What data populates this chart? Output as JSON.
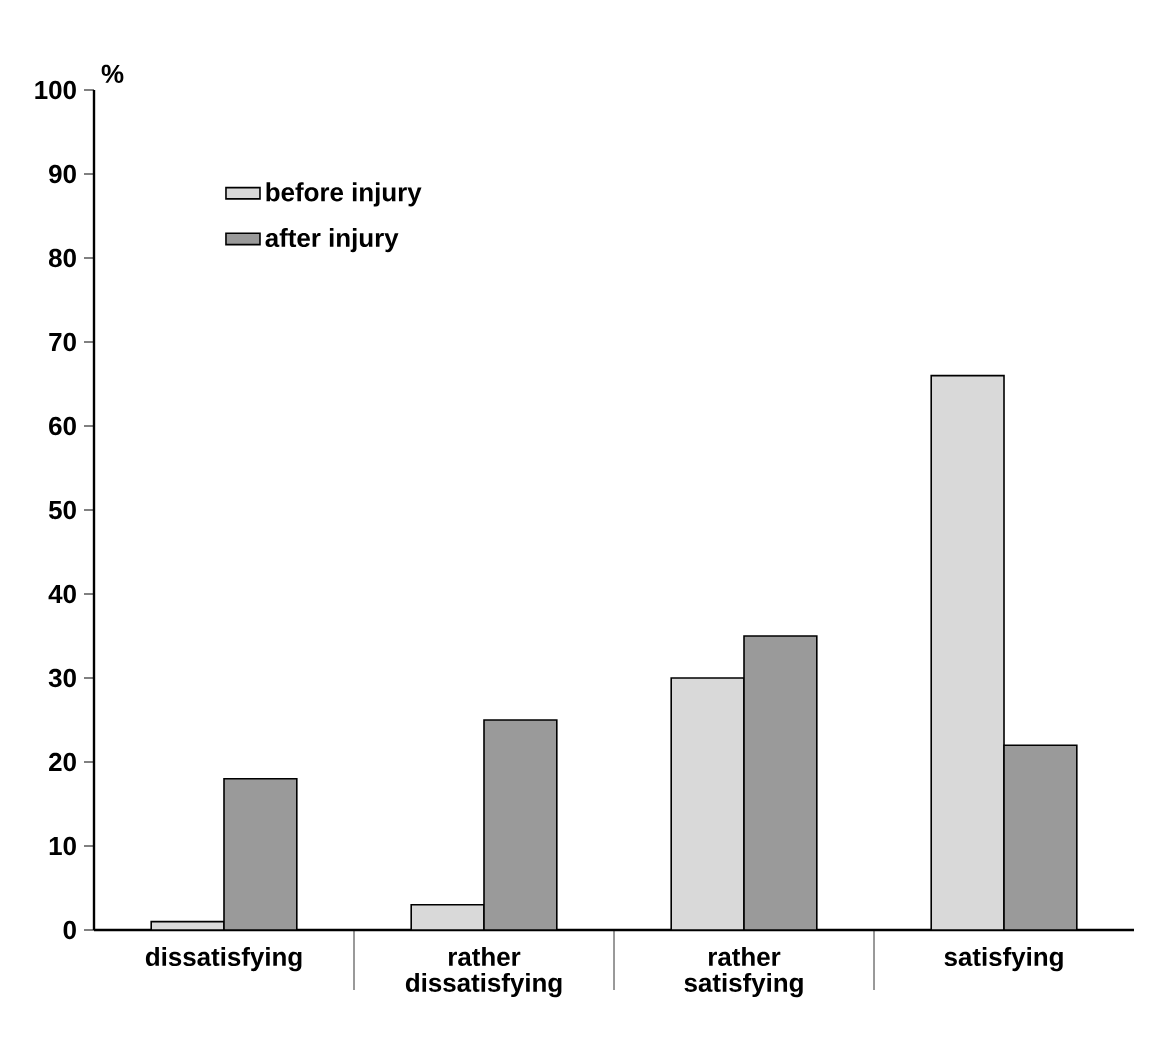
{
  "chart_data": {
    "type": "bar",
    "ylabel": "%",
    "categories": [
      "dissatisfying",
      "rather dissatisfying",
      "rather satisfying",
      "satisfying"
    ],
    "series": [
      {
        "name": "before injury",
        "color": "#d9d9d9",
        "values": [
          1,
          3,
          30,
          66
        ]
      },
      {
        "name": "after injury",
        "color": "#9a9a9a",
        "values": [
          18,
          25,
          35,
          22
        ]
      }
    ],
    "ylim": [
      0,
      100
    ],
    "yticks": [
      0,
      10,
      20,
      30,
      40,
      50,
      60,
      70,
      80,
      90,
      100
    ],
    "grid": false,
    "legend": "top left"
  }
}
